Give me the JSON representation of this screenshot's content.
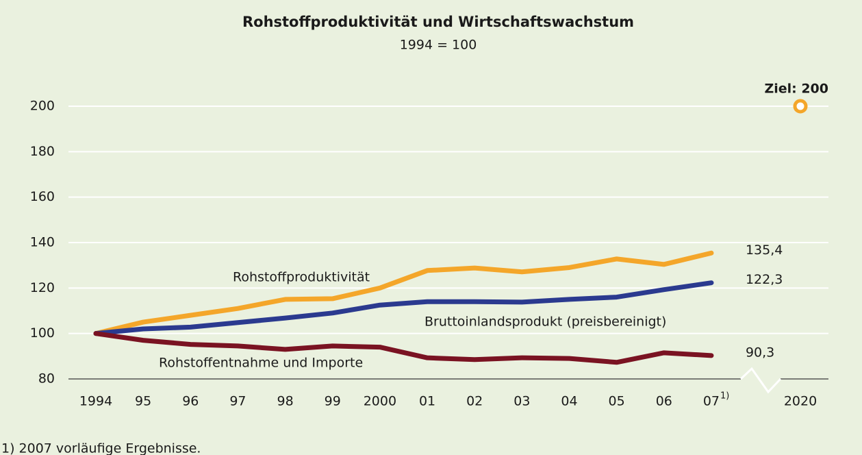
{
  "chart_data": {
    "type": "line",
    "title": "Rohstoffproduktivität und Wirtschaftswachstum",
    "subtitle": "1994 = 100",
    "categories": [
      "1994",
      "95",
      "96",
      "97",
      "98",
      "99",
      "2000",
      "01",
      "02",
      "03",
      "04",
      "05",
      "06",
      "07",
      "2020"
    ],
    "x_note": "1)",
    "ylim": [
      80,
      200
    ],
    "yticks": [
      80,
      100,
      120,
      140,
      160,
      180,
      200
    ],
    "grid": true,
    "series": [
      {
        "name": "Rohstoffproduktivität",
        "color": "#f4a62a",
        "values": [
          100,
          105,
          108,
          111,
          115,
          115.3,
          120,
          127.7,
          128.8,
          127.1,
          129,
          132.8,
          130.4,
          135.4,
          null
        ],
        "value_labels": [
          null,
          null,
          null,
          null,
          null,
          null,
          null,
          null,
          null,
          null,
          null,
          null,
          null,
          "135,4",
          null
        ]
      },
      {
        "name": "Bruttoinlandsprodukt (preisbereinigt)",
        "color": "#2b3a8f",
        "values": [
          100,
          102,
          102.8,
          104.8,
          106.8,
          109,
          112.5,
          114,
          114,
          113.8,
          115,
          116,
          119.3,
          122.3,
          null
        ],
        "value_labels": [
          null,
          null,
          null,
          null,
          null,
          null,
          null,
          null,
          null,
          null,
          null,
          null,
          null,
          "122,3",
          null
        ]
      },
      {
        "name": "Rohstoffentnahme und Importe",
        "color": "#7a1322",
        "values": [
          100,
          97,
          95.2,
          94.5,
          93,
          94.5,
          94,
          89.3,
          88.5,
          89.3,
          89,
          87.3,
          91.5,
          90.3,
          null
        ],
        "value_labels": [
          null,
          null,
          null,
          null,
          null,
          null,
          null,
          null,
          null,
          null,
          null,
          null,
          null,
          "90,3",
          null
        ]
      }
    ],
    "target": {
      "label": "Ziel: 200",
      "value": 200
    },
    "footnote": "1) 2007 vorläufige Ergebnisse."
  }
}
